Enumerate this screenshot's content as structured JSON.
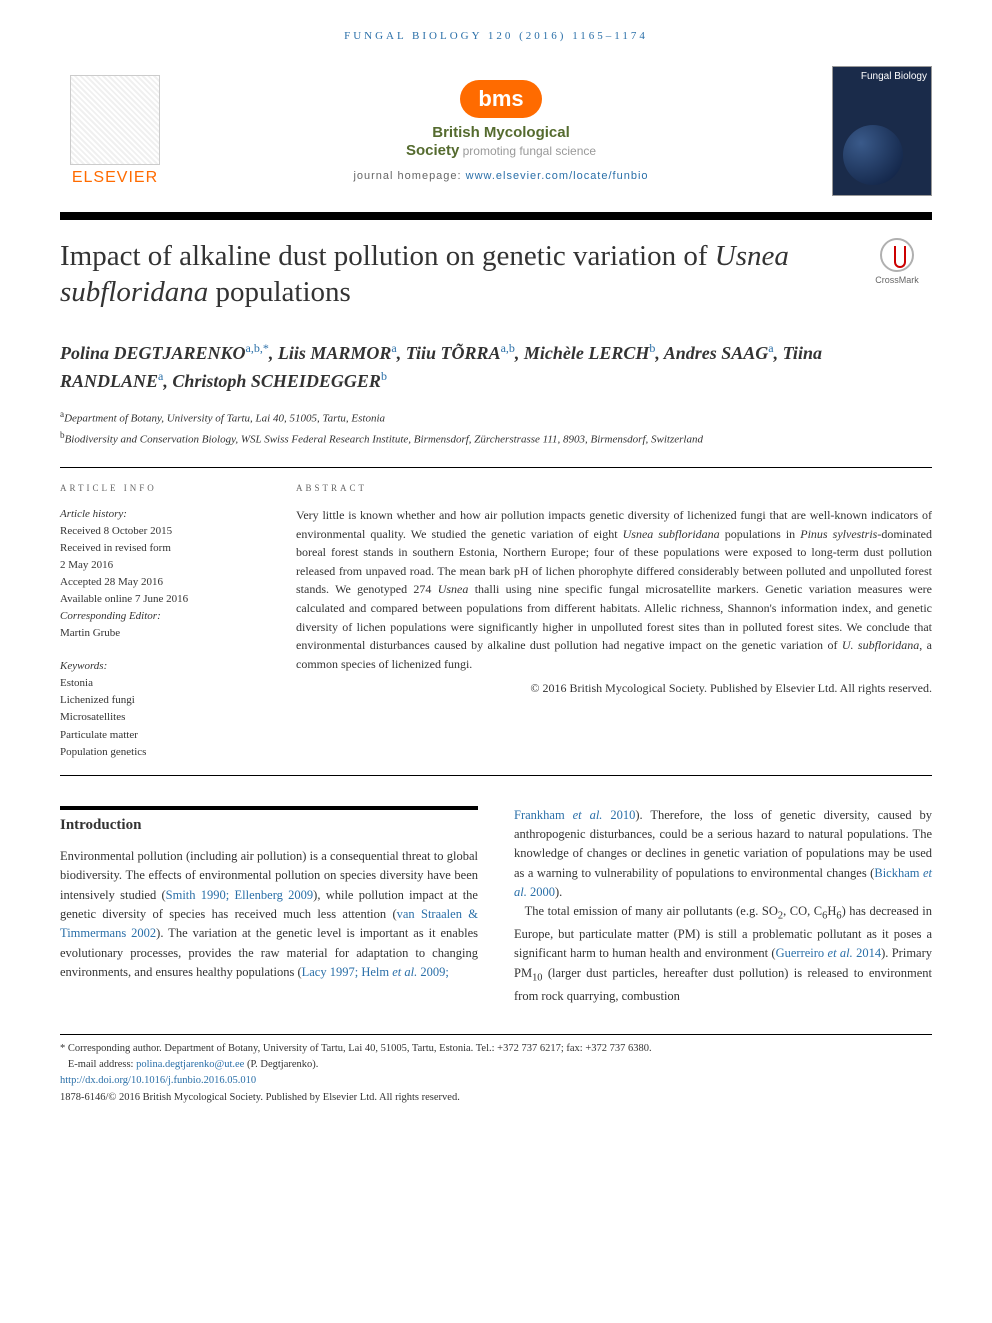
{
  "journal_header": "FUNGAL BIOLOGY 120 (2016) 1165–1174",
  "elsevier": "ELSEVIER",
  "bms": {
    "logo": "bms",
    "line1": "British Mycological",
    "line2_bold": "Society",
    "line2_rest": " promoting fungal science"
  },
  "homepage_label": "journal homepage: ",
  "homepage_url": "www.elsevier.com/locate/funbio",
  "cover_label": "Fungal\nBiology",
  "title_1": "Impact of alkaline dust pollution on genetic variation of ",
  "title_italic": "Usnea subfloridana",
  "title_2": " populations",
  "crossmark": "CrossMark",
  "authors_html": "Polina DEGTJARENKO<sup>a,b,*</sup>, Liis MARMOR<sup>a</sup>, Tiiu TÕRRA<sup>a,b</sup>, Michèle LERCH<sup>b</sup>, Andres SAAG<sup>a</sup>, Tiina RANDLANE<sup>a</sup>, Christoph SCHEIDEGGER<sup>b</sup>",
  "affiliations": {
    "a": "Department of Botany, University of Tartu, Lai 40, 51005, Tartu, Estonia",
    "b": "Biodiversity and Conservation Biology, WSL Swiss Federal Research Institute, Birmensdorf, Zürcherstrasse 111, 8903, Birmensdorf, Switzerland"
  },
  "info": {
    "heading": "ARTICLE INFO",
    "history_label": "Article history:",
    "received": "Received 8 October 2015",
    "revised1": "Received in revised form",
    "revised2": "2 May 2016",
    "accepted": "Accepted 28 May 2016",
    "online": "Available online 7 June 2016",
    "corr_label": "Corresponding Editor:",
    "corr_name": "Martin Grube",
    "keywords_label": "Keywords:",
    "kw1": "Estonia",
    "kw2": "Lichenized fungi",
    "kw3": "Microsatellites",
    "kw4": "Particulate matter",
    "kw5": "Population genetics"
  },
  "abstract": {
    "heading": "ABSTRACT",
    "text": "Very little is known whether and how air pollution impacts genetic diversity of lichenized fungi that are well-known indicators of environmental quality. We studied the genetic variation of eight <em>Usnea subfloridana</em> populations in <em>Pinus sylvestris</em>-dominated boreal forest stands in southern Estonia, Northern Europe; four of these populations were exposed to long-term dust pollution released from unpaved road. The mean bark pH of lichen phorophyte differed considerably between polluted and unpolluted forest stands. We genotyped 274 <em>Usnea</em> thalli using nine specific fungal microsatellite markers. Genetic variation measures were calculated and compared between populations from different habitats. Allelic richness, Shannon's information index, and genetic diversity of lichen populations were significantly higher in unpolluted forest sites than in polluted forest sites. We conclude that environmental disturbances caused by alkaline dust pollution had negative impact on the genetic variation of <em>U. subfloridana</em>, a common species of lichenized fungi.",
    "copyright": "© 2016 British Mycological Society. Published by Elsevier Ltd. All rights reserved."
  },
  "intro_heading": "Introduction",
  "intro_col1": "Environmental pollution (including air pollution) is a consequential threat to global biodiversity. The effects of environmental pollution on species diversity have been intensively studied (<span class=\"ref\">Smith 1990; Ellenberg 2009</span>), while pollution impact at the genetic diversity of species has received much less attention (<span class=\"ref\">van Straalen & Timmermans 2002</span>). The variation at the genetic level is important as it enables evolutionary processes, provides the raw material for adaptation to changing environments, and ensures healthy populations (<span class=\"ref\">Lacy 1997; Helm <em>et al.</em> 2009;</span>",
  "intro_col2": "<span class=\"ref\">Frankham <em>et al.</em> 2010</span>). Therefore, the loss of genetic diversity, caused by anthropogenic disturbances, could be a serious hazard to natural populations. The knowledge of changes or declines in genetic variation of populations may be used as a warning to vulnerability of populations to environmental changes (<span class=\"ref\">Bickham <em>et al.</em> 2000</span>).<br>&nbsp;&nbsp;&nbsp;The total emission of many air pollutants (e.g. SO<sub>2</sub>, CO, C<sub>6</sub>H<sub>6</sub>) has decreased in Europe, but particulate matter (PM) is still a problematic pollutant as it poses a significant harm to human health and environment (<span class=\"ref\">Guerreiro <em>et al.</em> 2014</span>). Primary PM<sub>10</sub> (larger dust particles, hereafter dust pollution) is released to environment from rock quarrying, combustion",
  "footnotes": {
    "corr": "* Corresponding author. Department of Botany, University of Tartu, Lai 40, 51005, Tartu, Estonia. Tel.: +372 737 6217; fax: +372 737 6380.",
    "email_label": "E-mail address: ",
    "email": "polina.degtjarenko@ut.ee",
    "email_suffix": " (P. Degtjarenko).",
    "doi": "http://dx.doi.org/10.1016/j.funbio.2016.05.010",
    "issn": "1878-6146/© 2016 British Mycological Society. Published by Elsevier Ltd. All rights reserved."
  },
  "colors": {
    "link": "#2a6fa8",
    "orange": "#ff6b00",
    "olive": "#556b2f",
    "text": "#333333"
  }
}
